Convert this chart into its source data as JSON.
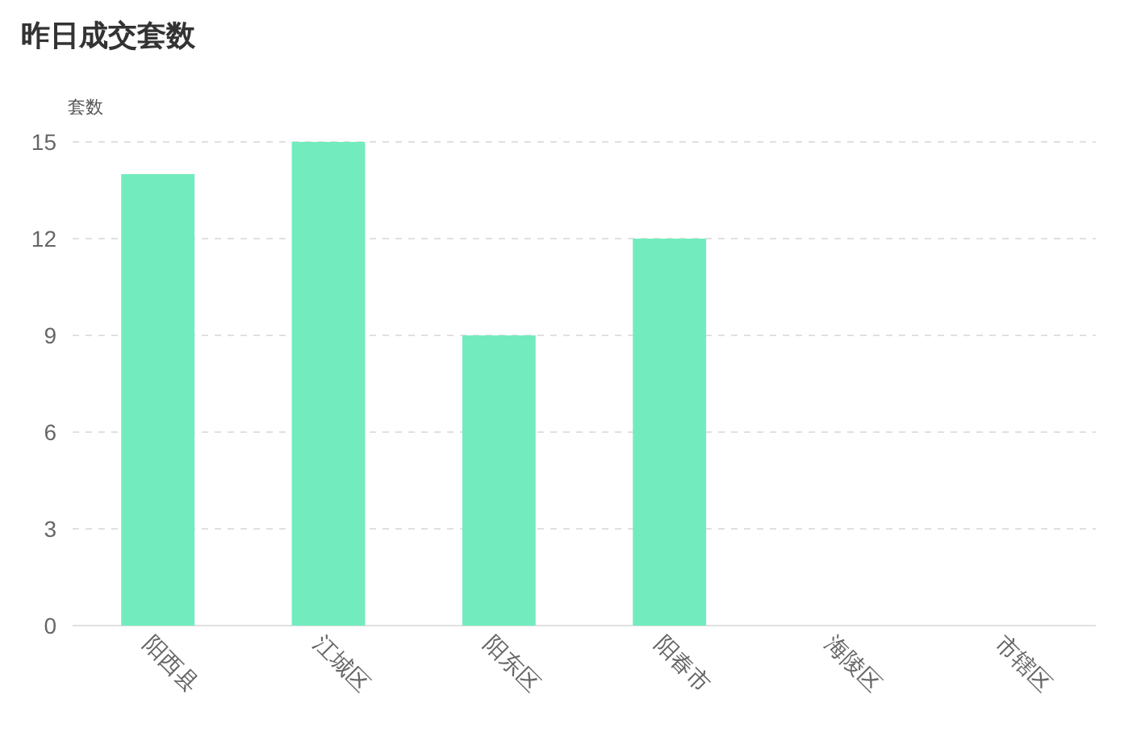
{
  "chart_data": {
    "type": "bar",
    "title": "昨日成交套数",
    "ylabel": "套数",
    "categories": [
      "阳西县",
      "江城区",
      "阳东区",
      "阳春市",
      "海陵区",
      "市辖区"
    ],
    "values": [
      14,
      15,
      9,
      12,
      0,
      0
    ],
    "color": "#72ecbe",
    "ylim": [
      0,
      15
    ],
    "yticks": [
      0,
      3,
      6,
      9,
      12,
      15
    ],
    "grid": "y"
  }
}
